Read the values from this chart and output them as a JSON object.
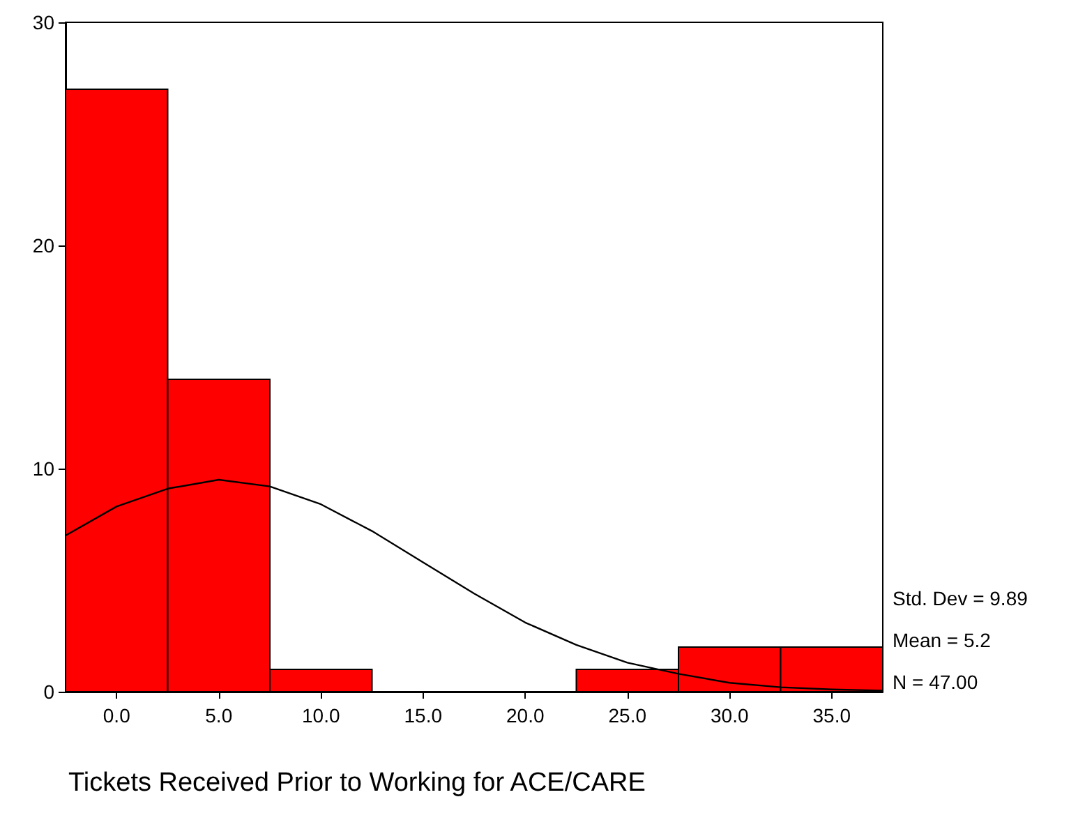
{
  "chart_data": {
    "type": "histogram",
    "xlabel": "Tickets Received Prior to Working for ACE/CARE",
    "bins": [
      -2.5,
      2.5,
      7.5,
      12.5,
      17.5,
      22.5,
      27.5,
      32.5,
      37.5
    ],
    "values": [
      27,
      14,
      1,
      0,
      0,
      1,
      2,
      2
    ],
    "color": "#ff0000",
    "series": [
      {
        "type": "line",
        "color": "#000000",
        "x": [
          -2.5,
          0,
          2.5,
          5,
          7.5,
          10,
          12.5,
          15,
          17.5,
          20,
          22.5,
          25,
          27.5,
          30,
          32.5,
          35,
          37.5
        ],
        "values": [
          7.0,
          8.3,
          9.1,
          9.5,
          9.2,
          8.4,
          7.2,
          5.8,
          4.4,
          3.1,
          2.1,
          1.3,
          0.8,
          0.4,
          0.2,
          0.1,
          0.05
        ]
      }
    ],
    "xlim": [
      -2.5,
      37.5
    ],
    "xticks": [
      {
        "value": 0,
        "label": "0.0"
      },
      {
        "value": 5,
        "label": "5.0"
      },
      {
        "value": 10,
        "label": "10.0"
      },
      {
        "value": 15,
        "label": "15.0"
      },
      {
        "value": 20,
        "label": "20.0"
      },
      {
        "value": 25,
        "label": "25.0"
      },
      {
        "value": 30,
        "label": "30.0"
      },
      {
        "value": 35,
        "label": "35.0"
      }
    ],
    "ylim": [
      0,
      30
    ],
    "yticks": [
      0,
      10,
      20,
      30
    ],
    "grid": false,
    "marker": "none",
    "line_style": "solid",
    "annotations": [
      "Std. Dev = 9.89",
      "Mean = 5.2",
      "N = 47.00"
    ]
  }
}
